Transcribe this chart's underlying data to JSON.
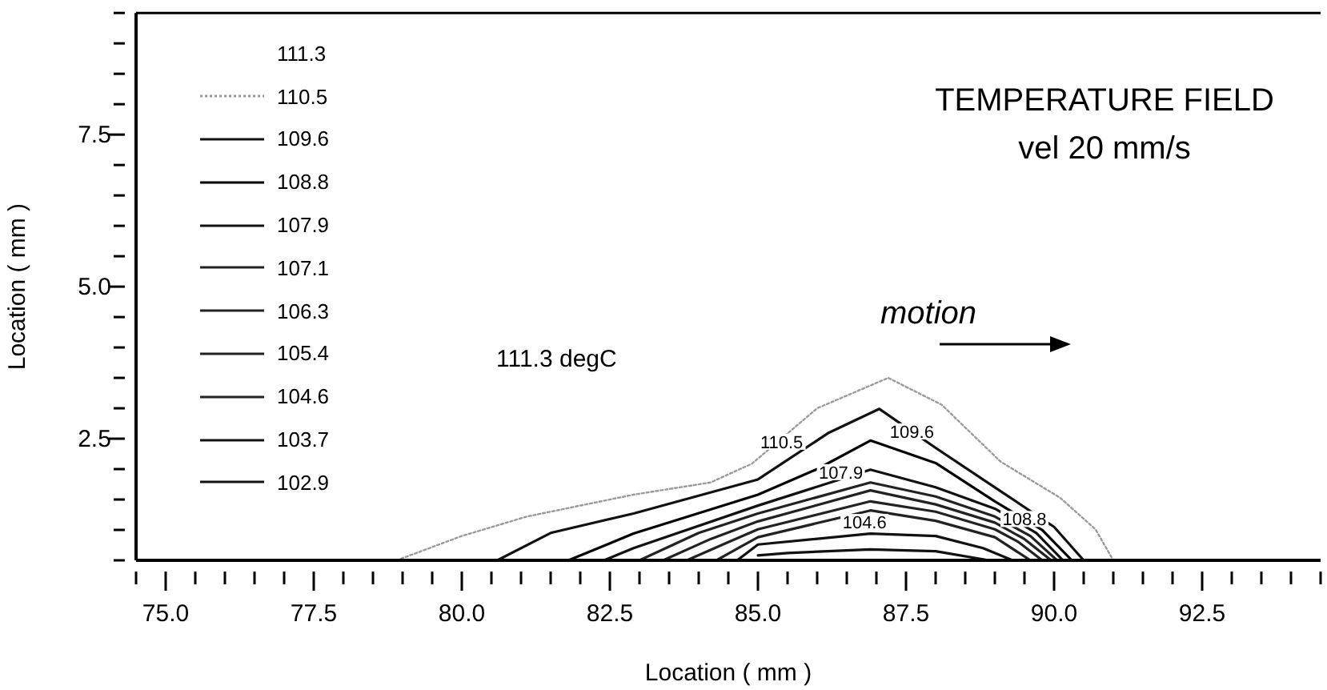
{
  "chart_data": {
    "type": "line",
    "title": "TEMPERATURE FIELD",
    "subtitle": "vel 20 mm/s",
    "xlabel": "Location ( mm )",
    "ylabel": "Location ( mm )",
    "annotations": [
      "111.3 degC",
      "motion",
      {
        "text": "110.5",
        "x": 85.4,
        "y": 2.45
      },
      {
        "text": "109.6",
        "x": 87.6,
        "y": 2.62
      },
      {
        "text": "107.9",
        "x": 86.4,
        "y": 1.95
      },
      {
        "text": "108.8",
        "x": 89.5,
        "y": 1.18
      },
      {
        "text": "104.6",
        "x": 86.8,
        "y": 1.13
      }
    ],
    "xlim": [
      74.5,
      94.5
    ],
    "ylim": [
      0.5,
      9.5
    ],
    "xticks": [
      {
        "value": 74.5,
        "label": null
      },
      {
        "value": 75,
        "label": "75.0"
      },
      {
        "value": 75.5,
        "label": null
      },
      {
        "value": 76,
        "label": null
      },
      {
        "value": 76.5,
        "label": null
      },
      {
        "value": 77,
        "label": null
      },
      {
        "value": 77.5,
        "label": "77.5"
      },
      {
        "value": 78,
        "label": null
      },
      {
        "value": 78.5,
        "label": null
      },
      {
        "value": 79,
        "label": null
      },
      {
        "value": 79.5,
        "label": null
      },
      {
        "value": 80,
        "label": "80.0"
      },
      {
        "value": 80.5,
        "label": null
      },
      {
        "value": 81,
        "label": null
      },
      {
        "value": 81.5,
        "label": null
      },
      {
        "value": 82,
        "label": null
      },
      {
        "value": 82.5,
        "label": "82.5"
      },
      {
        "value": 83,
        "label": null
      },
      {
        "value": 83.5,
        "label": null
      },
      {
        "value": 84,
        "label": null
      },
      {
        "value": 84.5,
        "label": null
      },
      {
        "value": 85,
        "label": "85.0"
      },
      {
        "value": 85.5,
        "label": null
      },
      {
        "value": 86,
        "label": null
      },
      {
        "value": 86.5,
        "label": null
      },
      {
        "value": 87,
        "label": null
      },
      {
        "value": 87.5,
        "label": "87.5"
      },
      {
        "value": 88,
        "label": null
      },
      {
        "value": 88.5,
        "label": null
      },
      {
        "value": 89,
        "label": null
      },
      {
        "value": 89.5,
        "label": null
      },
      {
        "value": 90,
        "label": "90.0"
      },
      {
        "value": 90.5,
        "label": null
      },
      {
        "value": 91,
        "label": null
      },
      {
        "value": 91.5,
        "label": null
      },
      {
        "value": 92,
        "label": null
      },
      {
        "value": 92.5,
        "label": "92.5"
      },
      {
        "value": 93,
        "label": null
      },
      {
        "value": 93.5,
        "label": null
      },
      {
        "value": 94,
        "label": null
      },
      {
        "value": 94.5,
        "label": null
      }
    ],
    "yticks": [
      {
        "value": 0.5,
        "label": null
      },
      {
        "value": 1,
        "label": null
      },
      {
        "value": 1.5,
        "label": null
      },
      {
        "value": 2,
        "label": null
      },
      {
        "value": 2.5,
        "label": "2.5"
      },
      {
        "value": 3,
        "label": null
      },
      {
        "value": 3.5,
        "label": null
      },
      {
        "value": 4,
        "label": null
      },
      {
        "value": 4.5,
        "label": null
      },
      {
        "value": 5,
        "label": "5.0"
      },
      {
        "value": 5.5,
        "label": null
      },
      {
        "value": 6,
        "label": null
      },
      {
        "value": 6.5,
        "label": null
      },
      {
        "value": 7,
        "label": null
      },
      {
        "value": 7.5,
        "label": "7.5"
      },
      {
        "value": 8,
        "label": null
      },
      {
        "value": 8.5,
        "label": null
      },
      {
        "value": 9,
        "label": null
      },
      {
        "value": 9.5,
        "label": null
      }
    ],
    "legend": "left",
    "marker": "none",
    "series": [
      {
        "name": "111.3",
        "color": null
      },
      {
        "name": "110.5",
        "color": "#9a9a9a",
        "line_style": "dotted",
        "x": [
          78.9,
          80,
          81.1,
          82.9,
          84.2,
          84.9,
          86,
          87.2,
          88.1,
          89.1,
          90.1,
          90.7,
          91
        ],
        "values": [
          0.5,
          0.9,
          1.22,
          1.58,
          1.78,
          2.09,
          3.0,
          3.5,
          3.06,
          2.12,
          1.53,
          1.01,
          0.5
        ]
      },
      {
        "name": "109.6",
        "color": "#111111",
        "line_style": "solid",
        "x": [
          80.6,
          81.5,
          82.9,
          85,
          86.2,
          87.05,
          88,
          89,
          90,
          90.5
        ],
        "values": [
          0.5,
          0.95,
          1.27,
          1.83,
          2.6,
          2.99,
          2.35,
          1.7,
          1.05,
          0.5
        ]
      },
      {
        "name": "108.8",
        "color": "#000000",
        "line_style": "solid",
        "x": [
          81.8,
          82.9,
          85,
          86,
          86.9,
          88,
          89,
          89.8,
          90.3
        ],
        "values": [
          0.5,
          0.94,
          1.58,
          2.0,
          2.47,
          2.1,
          1.47,
          1.0,
          0.5
        ]
      },
      {
        "name": "107.9",
        "color": "#111111",
        "line_style": "solid",
        "x": [
          82.4,
          82.9,
          85,
          86.9,
          88,
          89,
          89.7,
          90.15
        ],
        "values": [
          0.5,
          0.7,
          1.4,
          1.99,
          1.7,
          1.35,
          0.95,
          0.5
        ]
      },
      {
        "name": "107.1",
        "color": "#222222",
        "line_style": "solid",
        "x": [
          83,
          84,
          85,
          86.9,
          88,
          89,
          89.6,
          90.05
        ],
        "values": [
          0.5,
          0.95,
          1.27,
          1.78,
          1.55,
          1.22,
          0.9,
          0.5
        ]
      },
      {
        "name": "106.3",
        "color": "#222222",
        "line_style": "solid",
        "x": [
          83.4,
          84.2,
          85,
          86.9,
          88,
          89,
          89.5,
          89.95
        ],
        "values": [
          0.5,
          0.85,
          1.14,
          1.65,
          1.42,
          1.12,
          0.85,
          0.5
        ]
      },
      {
        "name": "105.4",
        "color": "#222222",
        "line_style": "solid",
        "x": [
          83.8,
          84.5,
          85,
          86.9,
          88,
          89,
          89.4,
          89.8
        ],
        "values": [
          0.5,
          0.8,
          1.01,
          1.47,
          1.3,
          1.01,
          0.8,
          0.5
        ]
      },
      {
        "name": "104.6",
        "color": "#222222",
        "line_style": "solid",
        "x": [
          84.3,
          84.7,
          85,
          86.9,
          88,
          89,
          89.6
        ],
        "values": [
          0.5,
          0.72,
          0.88,
          1.32,
          1.15,
          0.88,
          0.5
        ]
      },
      {
        "name": "103.7",
        "color": "#111111",
        "line_style": "solid",
        "x": [
          84.65,
          85,
          86.9,
          88,
          88.8,
          89.3
        ],
        "values": [
          0.5,
          0.76,
          0.94,
          0.9,
          0.7,
          0.5
        ]
      },
      {
        "name": "102.9",
        "color": "#111111",
        "line_style": "solid",
        "x": [
          85,
          85.5,
          86.9,
          88,
          88.9
        ],
        "values": [
          0.58,
          0.62,
          0.68,
          0.65,
          0.5
        ]
      }
    ]
  }
}
